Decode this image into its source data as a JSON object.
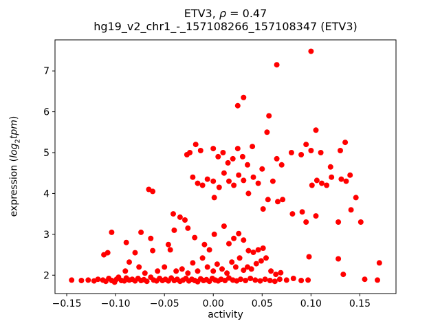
{
  "chart_data": {
    "type": "scatter",
    "title": {
      "part1": "ETV3, ",
      "rho": "ρ",
      "part2": " = 0.47"
    },
    "subtitle": "hg19_v2_chr1_-_157108266_157108347 (ETV3)",
    "xlabel": "activity",
    "ylabel": {
      "prefix": "expression (",
      "italic1": "log",
      "sub": "2",
      "italic2": "tpm",
      "suffix": ")"
    },
    "marker_color": "#ff0000",
    "axis_color": "#000000",
    "background_color": "#ffffff",
    "grid": false,
    "legend": "none",
    "xlim": [
      -0.162,
      0.187
    ],
    "ylim": [
      1.55,
      7.76
    ],
    "xticks": {
      "values": [
        -0.15,
        -0.1,
        -0.05,
        0.0,
        0.05,
        0.1,
        0.15
      ],
      "labels": [
        "−0.15",
        "−0.10",
        "−0.05",
        "0.00",
        "0.05",
        "0.10",
        "0.15"
      ]
    },
    "yticks": {
      "values": [
        2,
        3,
        4,
        5,
        6,
        7
      ],
      "labels": [
        "2",
        "3",
        "4",
        "5",
        "6",
        "7"
      ]
    },
    "points": [
      [
        -0.145,
        1.88
      ],
      [
        -0.135,
        1.87
      ],
      [
        -0.128,
        1.88
      ],
      [
        -0.122,
        1.86
      ],
      [
        -0.118,
        1.9
      ],
      [
        -0.113,
        1.88
      ],
      [
        -0.11,
        1.85
      ],
      [
        -0.107,
        1.92
      ],
      [
        -0.104,
        1.87
      ],
      [
        -0.101,
        1.83
      ],
      [
        -0.099,
        1.9
      ],
      [
        -0.097,
        1.95
      ],
      [
        -0.094,
        1.87
      ],
      [
        -0.091,
        1.86
      ],
      [
        -0.089,
        1.93
      ],
      [
        -0.086,
        1.88
      ],
      [
        -0.083,
        1.9
      ],
      [
        -0.08,
        1.86
      ],
      [
        -0.077,
        1.92
      ],
      [
        -0.074,
        1.87
      ],
      [
        -0.071,
        1.89
      ],
      [
        -0.068,
        1.85
      ],
      [
        -0.064,
        1.95
      ],
      [
        -0.061,
        1.88
      ],
      [
        -0.058,
        1.86
      ],
      [
        -0.055,
        1.92
      ],
      [
        -0.052,
        1.87
      ],
      [
        -0.049,
        1.9
      ],
      [
        -0.046,
        1.86
      ],
      [
        -0.043,
        1.93
      ],
      [
        -0.04,
        1.87
      ],
      [
        -0.037,
        1.9
      ],
      [
        -0.034,
        1.85
      ],
      [
        -0.031,
        1.88
      ],
      [
        -0.028,
        1.92
      ],
      [
        -0.025,
        1.86
      ],
      [
        -0.022,
        1.9
      ],
      [
        -0.019,
        1.87
      ],
      [
        -0.016,
        1.84
      ],
      [
        -0.013,
        1.91
      ],
      [
        -0.01,
        1.87
      ],
      [
        -0.007,
        1.89
      ],
      [
        -0.004,
        1.85
      ],
      [
        -0.001,
        1.92
      ],
      [
        0.002,
        1.88
      ],
      [
        0.005,
        1.86
      ],
      [
        0.008,
        1.9
      ],
      [
        0.012,
        1.87
      ],
      [
        0.016,
        1.93
      ],
      [
        0.02,
        1.88
      ],
      [
        0.024,
        1.86
      ],
      [
        0.028,
        1.9
      ],
      [
        0.033,
        1.87
      ],
      [
        0.038,
        1.92
      ],
      [
        0.043,
        1.88
      ],
      [
        0.048,
        1.86
      ],
      [
        0.053,
        1.9
      ],
      [
        0.058,
        1.87
      ],
      [
        0.063,
        1.85
      ],
      [
        0.068,
        1.9
      ],
      [
        0.075,
        1.88
      ],
      [
        0.082,
        1.92
      ],
      [
        0.09,
        1.87
      ],
      [
        0.097,
        1.88
      ],
      [
        0.155,
        1.9
      ],
      [
        0.168,
        1.88
      ],
      [
        -0.112,
        2.5
      ],
      [
        -0.108,
        2.55
      ],
      [
        -0.09,
        2.1
      ],
      [
        -0.086,
        2.32
      ],
      [
        -0.08,
        2.55
      ],
      [
        -0.076,
        2.2
      ],
      [
        -0.07,
        2.05
      ],
      [
        -0.062,
        2.6
      ],
      [
        -0.057,
        2.1
      ],
      [
        -0.05,
        2.2
      ],
      [
        -0.044,
        2.62
      ],
      [
        -0.038,
        2.1
      ],
      [
        -0.032,
        2.15
      ],
      [
        -0.026,
        2.05
      ],
      [
        -0.021,
        2.3
      ],
      [
        -0.016,
        2.1
      ],
      [
        -0.011,
        2.42
      ],
      [
        -0.006,
        2.2
      ],
      [
        0.0,
        2.1
      ],
      [
        0.004,
        2.27
      ],
      [
        0.009,
        2.15
      ],
      [
        0.014,
        2.05
      ],
      [
        0.019,
        2.32
      ],
      [
        0.023,
        2.2
      ],
      [
        0.027,
        2.42
      ],
      [
        0.031,
        2.12
      ],
      [
        0.035,
        2.2
      ],
      [
        0.039,
        2.15
      ],
      [
        0.044,
        2.28
      ],
      [
        0.049,
        2.35
      ],
      [
        0.054,
        2.42
      ],
      [
        0.059,
        2.1
      ],
      [
        0.064,
        2.02
      ],
      [
        0.069,
        2.06
      ],
      [
        0.098,
        2.45
      ],
      [
        0.128,
        2.4
      ],
      [
        0.133,
        2.02
      ],
      [
        0.17,
        2.3
      ],
      [
        -0.104,
        3.05
      ],
      [
        -0.089,
        2.8
      ],
      [
        -0.074,
        3.05
      ],
      [
        -0.064,
        2.9
      ],
      [
        -0.046,
        2.75
      ],
      [
        -0.04,
        3.1
      ],
      [
        -0.026,
        3.15
      ],
      [
        -0.019,
        2.92
      ],
      [
        -0.009,
        2.75
      ],
      [
        -0.004,
        2.62
      ],
      [
        0.001,
        3.0
      ],
      [
        0.011,
        3.2
      ],
      [
        0.016,
        2.77
      ],
      [
        0.021,
        2.9
      ],
      [
        0.026,
        3.02
      ],
      [
        0.031,
        2.86
      ],
      [
        0.036,
        2.6
      ],
      [
        0.041,
        2.56
      ],
      [
        0.046,
        2.62
      ],
      [
        0.051,
        2.66
      ],
      [
        0.095,
        3.3
      ],
      [
        0.105,
        3.45
      ],
      [
        0.128,
        3.3
      ],
      [
        -0.066,
        4.1
      ],
      [
        -0.062,
        4.05
      ],
      [
        -0.041,
        3.5
      ],
      [
        -0.034,
        3.42
      ],
      [
        -0.029,
        3.35
      ],
      [
        -0.021,
        4.4
      ],
      [
        -0.016,
        4.25
      ],
      [
        -0.011,
        4.2
      ],
      [
        -0.006,
        4.35
      ],
      [
        0.0,
        4.3
      ],
      [
        0.001,
        3.9
      ],
      [
        0.006,
        4.15
      ],
      [
        0.011,
        4.5
      ],
      [
        0.016,
        4.3
      ],
      [
        0.021,
        4.2
      ],
      [
        0.026,
        4.45
      ],
      [
        0.031,
        4.32
      ],
      [
        0.036,
        4.0
      ],
      [
        0.041,
        4.4
      ],
      [
        0.046,
        4.25
      ],
      [
        0.051,
        3.62
      ],
      [
        0.056,
        3.85
      ],
      [
        0.061,
        4.3
      ],
      [
        0.066,
        3.8
      ],
      [
        0.071,
        3.85
      ],
      [
        0.081,
        3.5
      ],
      [
        0.091,
        3.55
      ],
      [
        0.101,
        4.2
      ],
      [
        0.106,
        4.32
      ],
      [
        0.111,
        4.25
      ],
      [
        0.116,
        4.2
      ],
      [
        0.121,
        4.4
      ],
      [
        0.131,
        4.35
      ],
      [
        0.136,
        4.3
      ],
      [
        0.141,
        3.6
      ],
      [
        0.146,
        3.9
      ],
      [
        0.151,
        3.3
      ],
      [
        -0.027,
        4.95
      ],
      [
        -0.024,
        5.0
      ],
      [
        -0.018,
        5.2
      ],
      [
        -0.013,
        5.05
      ],
      [
        0.0,
        5.1
      ],
      [
        0.005,
        4.9
      ],
      [
        0.01,
        5.0
      ],
      [
        0.015,
        4.75
      ],
      [
        0.02,
        4.85
      ],
      [
        0.025,
        5.1
      ],
      [
        0.03,
        4.9
      ],
      [
        0.035,
        4.7
      ],
      [
        0.04,
        5.15
      ],
      [
        0.05,
        4.6
      ],
      [
        0.055,
        5.5
      ],
      [
        0.057,
        5.9
      ],
      [
        0.065,
        4.85
      ],
      [
        0.07,
        4.7
      ],
      [
        0.08,
        5.0
      ],
      [
        0.09,
        4.95
      ],
      [
        0.095,
        5.2
      ],
      [
        0.1,
        5.05
      ],
      [
        0.105,
        5.55
      ],
      [
        0.11,
        5.0
      ],
      [
        0.12,
        4.65
      ],
      [
        0.13,
        5.05
      ],
      [
        0.135,
        5.25
      ],
      [
        0.14,
        4.45
      ],
      [
        0.025,
        6.15
      ],
      [
        0.031,
        6.35
      ],
      [
        0.065,
        7.15
      ],
      [
        0.1,
        7.48
      ]
    ]
  }
}
